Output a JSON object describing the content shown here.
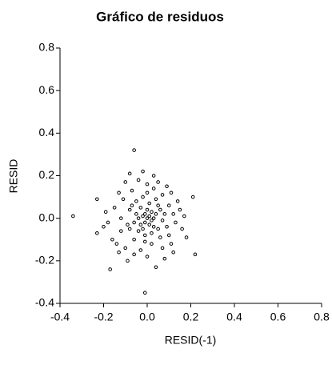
{
  "chart_data": {
    "type": "scatter",
    "title": "Gráfico de residuos",
    "xlabel": "RESID(-1)",
    "ylabel": "RESID",
    "color": "#000000",
    "xlim": [
      -0.4,
      0.8
    ],
    "ylim": [
      -0.4,
      0.8
    ],
    "xticks": [
      -0.4,
      -0.2,
      {
        "value": 0,
        "label": "0.0"
      },
      0.2,
      0.4,
      0.6,
      0.8
    ],
    "yticks": [
      -0.4,
      -0.2,
      {
        "value": 0,
        "label": "0.0"
      },
      0.2,
      0.4,
      0.6,
      0.8
    ],
    "x": [
      -0.06,
      -0.34,
      -0.01,
      -0.17,
      0.22,
      0.21,
      -0.23,
      -0.23,
      -0.09,
      -0.02,
      -0.08,
      0.0,
      -0.13,
      0.16,
      0.04,
      0.08,
      0.11,
      0.14,
      -0.19,
      -0.16,
      -0.1,
      -0.12,
      -0.15,
      -0.11,
      -0.07,
      0.03,
      0.07,
      0.1,
      0.12,
      0.09,
      0.06,
      0.02,
      -0.03,
      -0.06,
      -0.09,
      -0.08,
      -0.05,
      -0.02,
      0.01,
      0.04,
      0.06,
      0.07,
      0.05,
      0.02,
      -0.01,
      -0.04,
      -0.06,
      -0.05,
      -0.03,
      0.0,
      0.02,
      0.03,
      0.01,
      -0.01,
      -0.02,
      0.0,
      0.01,
      -0.01,
      0.02,
      -0.03,
      0.04,
      -0.04,
      0.03,
      -0.02,
      0.05,
      -0.07,
      0.08,
      -0.08,
      0.1,
      -0.12,
      0.13,
      -0.14,
      0.15,
      -0.04,
      0.05,
      -0.18,
      0.11,
      0.0,
      -0.06,
      0.07,
      0.18,
      -0.2,
      0.17,
      0.03,
      -0.1,
      0.09,
      -0.13,
      0.12,
      0.0,
      -0.01
    ],
    "values": [
      0.32,
      0.01,
      -0.35,
      -0.24,
      -0.17,
      0.1,
      0.09,
      -0.07,
      -0.2,
      0.22,
      0.21,
      0.16,
      0.12,
      -0.05,
      -0.23,
      -0.19,
      -0.12,
      0.08,
      0.03,
      -0.1,
      -0.14,
      -0.06,
      0.05,
      0.09,
      0.13,
      0.14,
      0.11,
      0.06,
      0.02,
      -0.04,
      -0.09,
      -0.12,
      -0.15,
      -0.1,
      -0.03,
      0.04,
      0.08,
      0.1,
      0.07,
      0.09,
      0.04,
      -0.01,
      -0.05,
      -0.07,
      -0.08,
      -0.06,
      -0.02,
      0.02,
      0.05,
      0.04,
      0.03,
      0.0,
      -0.03,
      -0.02,
      0.01,
      0.0,
      0.01,
      0.02,
      -0.01,
      -0.03,
      0.02,
      0.0,
      -0.04,
      -0.05,
      0.06,
      0.06,
      0.02,
      -0.05,
      -0.08,
      0.0,
      -0.02,
      -0.12,
      0.04,
      0.18,
      0.17,
      -0.02,
      0.12,
      -0.18,
      -0.17,
      -0.14,
      -0.09,
      -0.04,
      0.01,
      0.2,
      0.17,
      0.15,
      -0.16,
      -0.16,
      0.12,
      -0.11
    ]
  }
}
